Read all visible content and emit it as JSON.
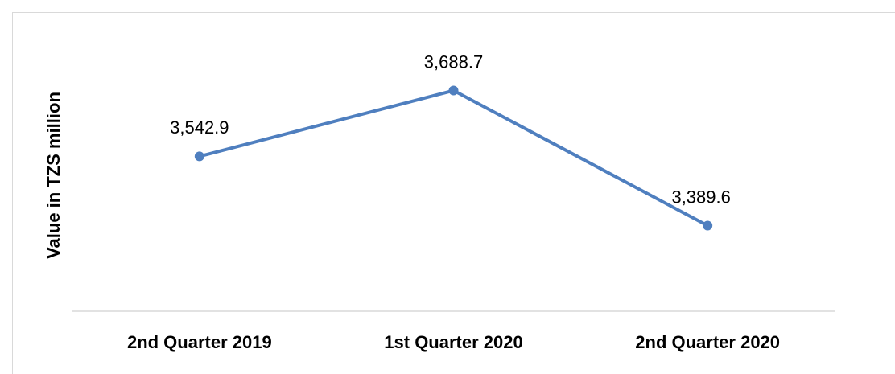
{
  "chart_data": {
    "type": "line",
    "y_label": "Value in TZS million",
    "categories": [
      "2nd Quarter 2019",
      "1st Quarter 2020",
      "2nd Quarter 2020"
    ],
    "series": [
      {
        "color": "#4f7fbf",
        "values": [
          3542.9,
          3688.7,
          3389.6
        ],
        "value_labels": [
          "3,542.9",
          "3,688.7",
          "3,389.6"
        ]
      }
    ],
    "ylim": [
      3200,
      3800
    ]
  }
}
